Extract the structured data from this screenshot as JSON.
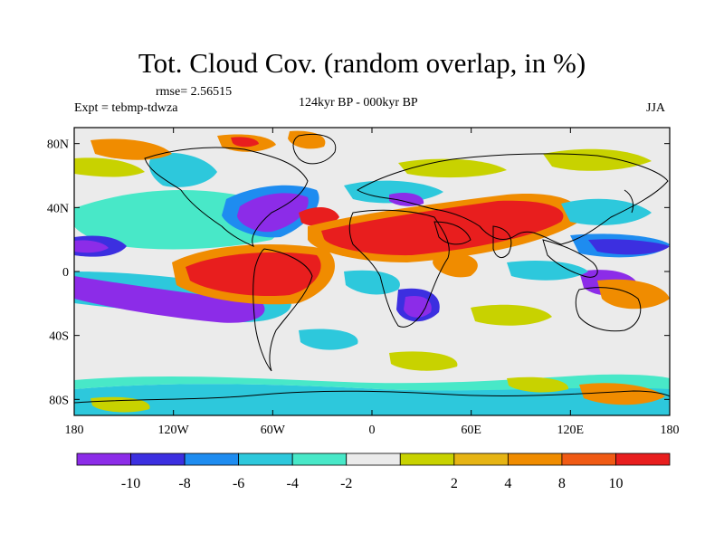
{
  "title": "Tot. Cloud Cov. (random overlap, in %)",
  "rmse_label": "rmse= 2.56515",
  "experiment_label": "Expt = tebmp-tdwza",
  "period_label": "124kyr BP - 000kyr BP",
  "season_label": "JJA",
  "map": {
    "projection": "cylindrical equidistant",
    "lon_range": [
      -180,
      180
    ],
    "lat_range": [
      -90,
      90
    ],
    "lat_ticks": [
      "80N",
      "40N",
      "0",
      "40S",
      "80S"
    ],
    "lon_ticks": [
      "180",
      "120W",
      "60W",
      "0",
      "60E",
      "120E",
      "180"
    ],
    "background_color": "#ebebeb",
    "coastline_color": "#000000"
  },
  "colorbar": {
    "colors": [
      "#8c2ce8",
      "#3c2fe0",
      "#1e8cf0",
      "#2dc8dc",
      "#48e8c8",
      "#ebebeb",
      "#c8d200",
      "#e6b414",
      "#f08c00",
      "#f05a14",
      "#e81e1e"
    ],
    "labels": [
      "-10",
      "-8",
      "-6",
      "-4",
      "-2",
      "2",
      "4",
      "8",
      "10"
    ]
  },
  "anomaly_regions": [
    {
      "name": "north-africa-arabia-india",
      "level": 11
    },
    {
      "name": "south-atlantic-tropics",
      "level": 11
    },
    {
      "name": "east-pacific-tropics",
      "level": 1
    },
    {
      "name": "north-atlantic-midlat",
      "level": 1
    },
    {
      "name": "south-africa",
      "level": 1
    },
    {
      "name": "west-pacific-subtropics",
      "level": 2
    },
    {
      "name": "australia-north",
      "level": 9
    }
  ]
}
